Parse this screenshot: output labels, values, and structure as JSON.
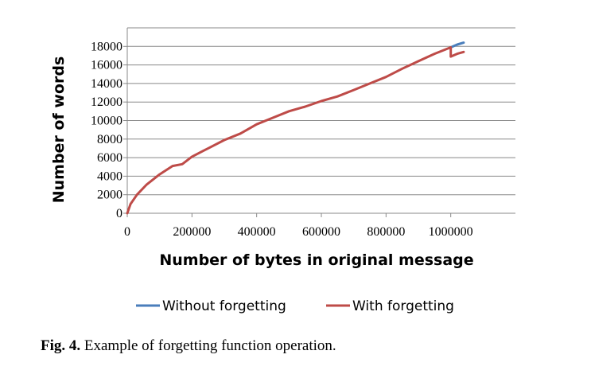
{
  "chart_data": {
    "type": "line",
    "xlabel": "Number of bytes in original message",
    "ylabel": "Number of words",
    "xlim": [
      0,
      1200000
    ],
    "ylim": [
      0,
      20000
    ],
    "x_ticks": [
      0,
      200000,
      400000,
      600000,
      800000,
      1000000
    ],
    "x_tick_labels": [
      "0",
      "200000",
      "400000",
      "600000",
      "800000",
      "1000000"
    ],
    "y_ticks": [
      0,
      2000,
      4000,
      6000,
      8000,
      10000,
      12000,
      14000,
      16000,
      18000
    ],
    "y_tick_labels": [
      "0",
      "2000",
      "4000",
      "6000",
      "8000",
      "10000",
      "12000",
      "14000",
      "16000",
      "18000"
    ],
    "grid": "horizontal",
    "legend_position": "bottom",
    "series": [
      {
        "name": "Without forgetting",
        "color": "#4a7ebb",
        "x": [
          1000000,
          1020000,
          1040000
        ],
        "y": [
          17900,
          18200,
          18400
        ]
      },
      {
        "name": "With forgetting",
        "color": "#be4b48",
        "x": [
          0,
          10000,
          30000,
          60000,
          100000,
          140000,
          170000,
          200000,
          250000,
          300000,
          350000,
          400000,
          450000,
          500000,
          550000,
          600000,
          650000,
          700000,
          750000,
          800000,
          850000,
          900000,
          950000,
          1000000,
          1000000,
          1020000,
          1040000
        ],
        "y": [
          0,
          1000,
          2000,
          3100,
          4200,
          5100,
          5300,
          6100,
          7000,
          7900,
          8600,
          9600,
          10300,
          11000,
          11500,
          12100,
          12600,
          13300,
          14000,
          14700,
          15600,
          16400,
          17200,
          17900,
          16900,
          17200,
          17400
        ]
      }
    ]
  },
  "caption": {
    "label": "Fig. 4.",
    "text": " Example of forgetting function operation."
  }
}
